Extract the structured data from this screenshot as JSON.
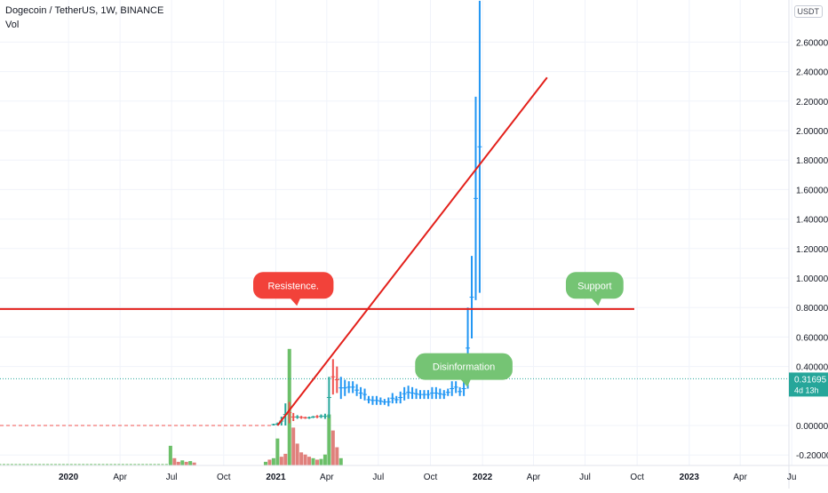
{
  "header": {
    "title": "Dogecoin / TetherUS, 1W, BINANCE",
    "indicator": "Vol",
    "currency": "USDT"
  },
  "colors": {
    "up": "#26a69a",
    "down": "#ef5350",
    "bar": "#2196f3",
    "line": "#e3201b",
    "vol_up": "#6cbf69",
    "vol_down": "#e0807c",
    "price_tag": "#26a69a",
    "bubble_red": "#f2423a",
    "bubble_green": "#75c474"
  },
  "chart_data": {
    "type": "bar",
    "title": "Dogecoin / TetherUS, 1W, BINANCE",
    "x_ticks": [
      "2020",
      "Apr",
      "Jul",
      "Oct",
      "2021",
      "Apr",
      "Jul",
      "Oct",
      "2022",
      "Apr",
      "Jul",
      "Oct",
      "2023",
      "Apr",
      "Ju"
    ],
    "x_range": [
      "2019-09-02",
      "2023-06-26"
    ],
    "y_ticks": [
      "2.60000",
      "2.40000",
      "2.20000",
      "2.00000",
      "1.80000",
      "1.60000",
      "1.40000",
      "1.20000",
      "1.00000",
      "0.80000",
      "0.60000",
      "0.40000",
      "0.00000",
      "-0.20000"
    ],
    "y_top_label": "2",
    "ylim": [
      -0.24,
      2.88
    ],
    "last_price": "0.31695",
    "countdown": "4d 13h",
    "prev_close": 0.0,
    "price_series": [
      {
        "date": "2020-12-28",
        "high": 0.012,
        "low": 0.0,
        "up": true
      },
      {
        "date": "2021-01-04",
        "high": 0.02,
        "low": 0.0,
        "up": true
      },
      {
        "date": "2021-01-11",
        "high": 0.06,
        "low": 0.0,
        "up": true
      },
      {
        "date": "2021-01-18",
        "high": 0.15,
        "low": 0.0,
        "up": true
      },
      {
        "date": "2021-01-25",
        "high": 0.16,
        "low": 0.015,
        "up": false
      },
      {
        "date": "2021-02-01",
        "high": 0.085,
        "low": 0.03,
        "up": false
      },
      {
        "date": "2021-02-08",
        "high": 0.07,
        "low": 0.045,
        "up": true
      },
      {
        "date": "2021-02-15",
        "high": 0.065,
        "low": 0.045,
        "up": false
      },
      {
        "date": "2021-02-22",
        "high": 0.06,
        "low": 0.045,
        "up": false
      },
      {
        "date": "2021-03-01",
        "high": 0.06,
        "low": 0.045,
        "up": true
      },
      {
        "date": "2021-03-08",
        "high": 0.065,
        "low": 0.05,
        "up": true
      },
      {
        "date": "2021-03-15",
        "high": 0.07,
        "low": 0.05,
        "up": false
      },
      {
        "date": "2021-03-22",
        "high": 0.075,
        "low": 0.05,
        "up": true
      },
      {
        "date": "2021-03-29",
        "high": 0.08,
        "low": 0.045,
        "up": true
      },
      {
        "date": "2021-04-05",
        "high": 0.33,
        "low": 0.05,
        "up": true
      },
      {
        "date": "2021-04-12",
        "high": 0.45,
        "low": 0.21,
        "up": false
      },
      {
        "date": "2021-04-19",
        "high": 0.4,
        "low": 0.22,
        "up": false
      },
      {
        "date": "2021-04-26",
        "high": 0.33,
        "low": 0.18,
        "up": true
      },
      {
        "date": "2021-05-03",
        "high": 0.31,
        "low": 0.2,
        "up": false
      },
      {
        "date": "2021-05-10",
        "high": 0.3,
        "low": 0.22,
        "up": false
      },
      {
        "date": "2021-05-17",
        "high": 0.3,
        "low": 0.22,
        "up": false
      },
      {
        "date": "2021-05-24",
        "high": 0.28,
        "low": 0.2,
        "up": false
      },
      {
        "date": "2021-05-31",
        "high": 0.26,
        "low": 0.18,
        "up": false
      },
      {
        "date": "2021-06-07",
        "high": 0.25,
        "low": 0.17,
        "up": false
      },
      {
        "date": "2021-06-14",
        "high": 0.2,
        "low": 0.15,
        "up": false
      },
      {
        "date": "2021-06-21",
        "high": 0.2,
        "low": 0.14,
        "up": false
      },
      {
        "date": "2021-06-28",
        "high": 0.2,
        "low": 0.14,
        "up": false
      },
      {
        "date": "2021-07-05",
        "high": 0.19,
        "low": 0.14,
        "up": false
      },
      {
        "date": "2021-07-12",
        "high": 0.18,
        "low": 0.14,
        "up": false
      },
      {
        "date": "2021-07-19",
        "high": 0.19,
        "low": 0.13,
        "up": false
      },
      {
        "date": "2021-07-26",
        "high": 0.22,
        "low": 0.15,
        "up": false
      },
      {
        "date": "2021-08-02",
        "high": 0.2,
        "low": 0.15,
        "up": false
      },
      {
        "date": "2021-08-09",
        "high": 0.23,
        "low": 0.15,
        "up": false
      },
      {
        "date": "2021-08-16",
        "high": 0.26,
        "low": 0.17,
        "up": false
      },
      {
        "date": "2021-08-23",
        "high": 0.27,
        "low": 0.18,
        "up": false
      },
      {
        "date": "2021-08-30",
        "high": 0.26,
        "low": 0.18,
        "up": false
      },
      {
        "date": "2021-09-06",
        "high": 0.25,
        "low": 0.18,
        "up": false
      },
      {
        "date": "2021-09-13",
        "high": 0.24,
        "low": 0.18,
        "up": false
      },
      {
        "date": "2021-09-20",
        "high": 0.24,
        "low": 0.18,
        "up": false
      },
      {
        "date": "2021-09-27",
        "high": 0.24,
        "low": 0.18,
        "up": false
      },
      {
        "date": "2021-10-04",
        "high": 0.26,
        "low": 0.18,
        "up": false
      },
      {
        "date": "2021-10-11",
        "high": 0.26,
        "low": 0.18,
        "up": false
      },
      {
        "date": "2021-10-18",
        "high": 0.25,
        "low": 0.18,
        "up": false
      },
      {
        "date": "2021-10-25",
        "high": 0.24,
        "low": 0.18,
        "up": false
      },
      {
        "date": "2021-11-01",
        "high": 0.25,
        "low": 0.2,
        "up": false
      },
      {
        "date": "2021-11-08",
        "high": 0.3,
        "low": 0.2,
        "up": false
      },
      {
        "date": "2021-11-15",
        "high": 0.3,
        "low": 0.22,
        "up": false
      },
      {
        "date": "2021-11-22",
        "high": 0.26,
        "low": 0.2,
        "up": false
      },
      {
        "date": "2021-11-29",
        "high": 0.3,
        "low": 0.2,
        "up": false
      },
      {
        "date": "2021-12-06",
        "high": 0.8,
        "low": 0.25,
        "up": false
      },
      {
        "date": "2021-12-13",
        "high": 1.15,
        "low": 0.59,
        "up": false
      },
      {
        "date": "2021-12-20",
        "high": 2.23,
        "low": 0.85,
        "up": false
      },
      {
        "date": "2021-12-27",
        "high": 2.88,
        "low": 0.9,
        "up": false
      }
    ],
    "volume_series": [
      {
        "date": "2020-06-29",
        "value": 0.27,
        "up": true
      },
      {
        "date": "2020-07-06",
        "value": 0.1,
        "up": false
      },
      {
        "date": "2020-07-13",
        "value": 0.05,
        "up": false
      },
      {
        "date": "2020-07-20",
        "value": 0.07,
        "up": true
      },
      {
        "date": "2020-07-27",
        "value": 0.05,
        "up": false
      },
      {
        "date": "2020-08-03",
        "value": 0.06,
        "up": true
      },
      {
        "date": "2020-08-10",
        "value": 0.04,
        "up": false
      },
      {
        "date": "2020-12-14",
        "value": 0.05,
        "up": true
      },
      {
        "date": "2020-12-21",
        "value": 0.08,
        "up": false
      },
      {
        "date": "2020-12-28",
        "value": 0.1,
        "up": true
      },
      {
        "date": "2021-01-04",
        "value": 0.37,
        "up": true
      },
      {
        "date": "2021-01-11",
        "value": 0.12,
        "up": false
      },
      {
        "date": "2021-01-18",
        "value": 0.16,
        "up": false
      },
      {
        "date": "2021-01-25",
        "value": 1.6,
        "up": true
      },
      {
        "date": "2021-02-01",
        "value": 0.52,
        "up": false
      },
      {
        "date": "2021-02-08",
        "value": 0.3,
        "up": false
      },
      {
        "date": "2021-02-15",
        "value": 0.18,
        "up": false
      },
      {
        "date": "2021-02-22",
        "value": 0.15,
        "up": false
      },
      {
        "date": "2021-03-01",
        "value": 0.12,
        "up": false
      },
      {
        "date": "2021-03-08",
        "value": 0.1,
        "up": true
      },
      {
        "date": "2021-03-15",
        "value": 0.08,
        "up": false
      },
      {
        "date": "2021-03-22",
        "value": 0.09,
        "up": true
      },
      {
        "date": "2021-03-29",
        "value": 0.15,
        "up": true
      },
      {
        "date": "2021-04-05",
        "value": 0.7,
        "up": true
      },
      {
        "date": "2021-04-12",
        "value": 0.48,
        "up": false
      },
      {
        "date": "2021-04-19",
        "value": 0.25,
        "up": false
      },
      {
        "date": "2021-04-26",
        "value": 0.1,
        "up": true
      }
    ],
    "lines": [
      {
        "name": "resistance-line",
        "x1": "2019-09-02",
        "y1": 0.79,
        "x2": "2022-09-26",
        "y2": 0.79
      },
      {
        "name": "trend-line",
        "x1": "2021-01-04",
        "y1": 0.0,
        "x2": "2022-04-25",
        "y2": 2.36
      }
    ],
    "annotations": [
      {
        "name": "resistence-callout",
        "text": "Resistence.",
        "date": "2021-02-01",
        "y": 0.95,
        "fill": "#f2423a"
      },
      {
        "name": "support-callout",
        "text": "Support",
        "date": "2022-07-18",
        "y": 0.95,
        "fill": "#75c474"
      },
      {
        "name": "disinformation-callout",
        "text": "Disinformation",
        "date": "2021-11-29",
        "y": 0.4,
        "fill": "#75c474"
      }
    ]
  }
}
